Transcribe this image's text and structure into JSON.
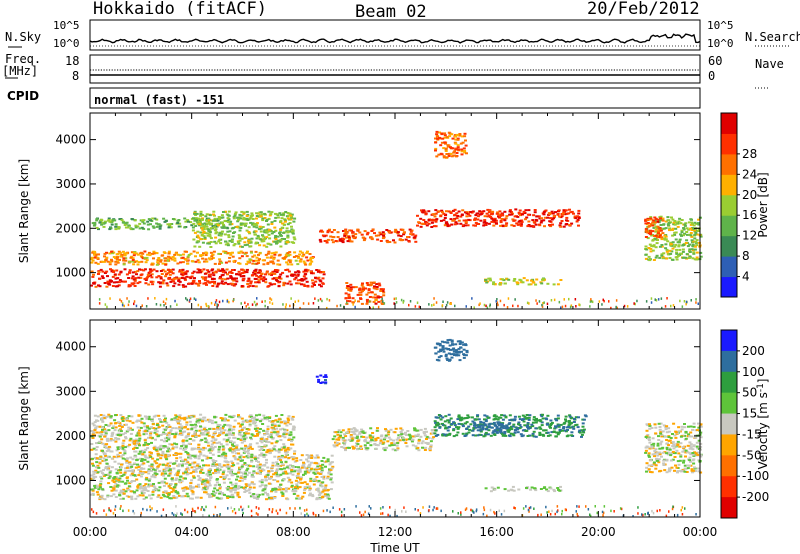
{
  "header": {
    "site": "Hokkaido (fitACF)",
    "beam": "Beam 02",
    "date": "20/Feb/2012"
  },
  "strips": {
    "noise": {
      "left_label": "N.Sky",
      "right_label": "N.Search",
      "left_ticks": [
        "10^5",
        "10^0"
      ],
      "right_ticks": [
        "10^5",
        "10^0"
      ]
    },
    "freq": {
      "left_label_1": "Freq.",
      "left_label_2": "[MHz]",
      "right_label": "Nave",
      "left_ticks": [
        "18",
        "8"
      ],
      "right_ticks": [
        "60",
        "0"
      ]
    },
    "cpid": {
      "label": "CPID",
      "value": "normal (fast) -151"
    }
  },
  "x_axis": {
    "title": "Time UT",
    "ticks": [
      "00:00",
      "04:00",
      "08:00",
      "12:00",
      "16:00",
      "20:00",
      "00:00"
    ]
  },
  "chart_data": [
    {
      "type": "heatmap",
      "panel": "power",
      "ylabel": "Slant Range [km]",
      "y_ticks": [
        1000,
        2000,
        3000,
        4000
      ],
      "ylim": [
        180,
        4600
      ],
      "x_range_hours": [
        0,
        24
      ],
      "colorbar": {
        "label": "Power [dB]",
        "ticks": [
          4,
          8,
          12,
          16,
          20,
          24,
          28
        ],
        "range": [
          0,
          30
        ],
        "colors": [
          "#1a1aff",
          "#2e5fb5",
          "#3a8a55",
          "#5fb34a",
          "#9acd32",
          "#ffb000",
          "#ff7000",
          "#ff3000",
          "#e00000"
        ]
      },
      "regions": [
        {
          "t0": 0.0,
          "t1": 8.8,
          "r0": 1200,
          "r1": 1500,
          "value": 20
        },
        {
          "t0": 0.0,
          "t1": 9.2,
          "r0": 700,
          "r1": 1100,
          "value": 26
        },
        {
          "t0": 0.0,
          "t1": 5.5,
          "r0": 2000,
          "r1": 2250,
          "value": 12
        },
        {
          "t0": 4.0,
          "t1": 8.0,
          "r0": 1600,
          "r1": 2400,
          "value": 14
        },
        {
          "t0": 9.0,
          "t1": 12.8,
          "r0": 1700,
          "r1": 2000,
          "value": 24
        },
        {
          "t0": 12.8,
          "t1": 19.2,
          "r0": 2050,
          "r1": 2450,
          "value": 26
        },
        {
          "t0": 13.5,
          "t1": 14.8,
          "r0": 3600,
          "r1": 4200,
          "value": 22
        },
        {
          "t0": 15.5,
          "t1": 18.5,
          "r0": 750,
          "r1": 900,
          "value": 16
        },
        {
          "t0": 21.8,
          "t1": 24.0,
          "r0": 1300,
          "r1": 2300,
          "value": 14
        },
        {
          "t0": 21.8,
          "t1": 22.5,
          "r0": 1800,
          "r1": 2300,
          "value": 24
        },
        {
          "t0": 10.0,
          "t1": 11.5,
          "r0": 300,
          "r1": 800,
          "value": 24
        }
      ]
    },
    {
      "type": "heatmap",
      "panel": "velocity",
      "ylabel": "Slant Range [km]",
      "y_ticks": [
        1000,
        2000,
        3000,
        4000
      ],
      "ylim": [
        180,
        4600
      ],
      "x_range_hours": [
        0,
        24
      ],
      "colorbar": {
        "label": "Velocity [m s^-1]",
        "ticks": [
          200,
          100,
          50,
          15,
          -15,
          -50,
          -100,
          -200
        ],
        "colors": [
          "#1a1aff",
          "#2e6e9e",
          "#2e9e3e",
          "#5ec43a",
          "#c8c8c0",
          "#ffa500",
          "#ff7000",
          "#ff3000",
          "#e00000"
        ]
      },
      "regions": [
        {
          "t0": 0.0,
          "t1": 9.5,
          "r0": 600,
          "r1": 1600,
          "value": 0
        },
        {
          "t0": 0.0,
          "t1": 8.0,
          "r0": 1600,
          "r1": 2500,
          "value": 0
        },
        {
          "t0": 9.5,
          "t1": 13.5,
          "r0": 1700,
          "r1": 2200,
          "value": 0
        },
        {
          "t0": 13.5,
          "t1": 19.5,
          "r0": 2000,
          "r1": 2500,
          "value": 90
        },
        {
          "t0": 15.0,
          "t1": 16.8,
          "r0": 2100,
          "r1": 2350,
          "value": 170
        },
        {
          "t0": 13.5,
          "t1": 14.8,
          "r0": 3700,
          "r1": 4200,
          "value": 150
        },
        {
          "t0": 8.8,
          "t1": 9.3,
          "r0": 3200,
          "r1": 3400,
          "value": 220
        },
        {
          "t0": 21.8,
          "t1": 24.0,
          "r0": 1200,
          "r1": 2300,
          "value": 0
        },
        {
          "t0": 15.5,
          "t1": 18.5,
          "r0": 780,
          "r1": 880,
          "value": 20
        }
      ]
    }
  ]
}
